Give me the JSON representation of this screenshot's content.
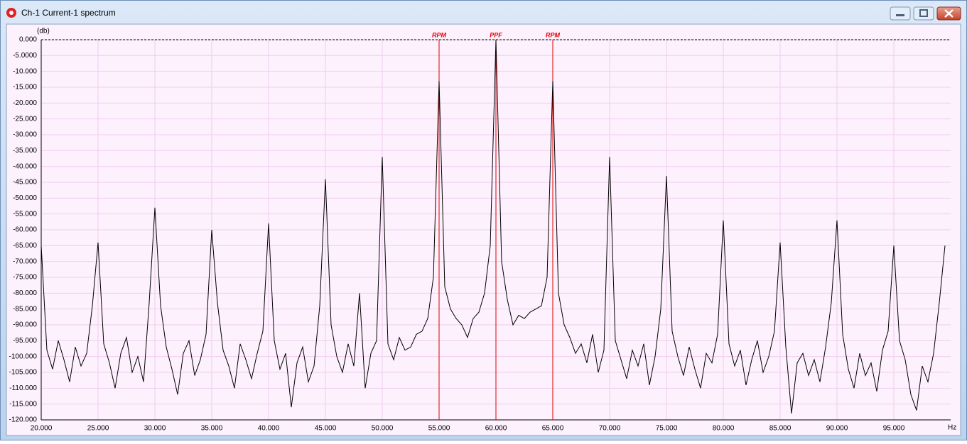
{
  "chart_data": {
    "type": "line",
    "title": "Ch-1 Current-1 spectrum",
    "y_label": "(db)",
    "x_label": "Hz",
    "color": "#000000",
    "grid": true,
    "xlim": [
      20,
      100
    ],
    "ylim": [
      -120,
      0
    ],
    "xticks": [
      {
        "value": 20,
        "label": "20.000"
      },
      {
        "value": 25,
        "label": "25.000"
      },
      {
        "value": 30,
        "label": "30.000"
      },
      {
        "value": 35,
        "label": "35.000"
      },
      {
        "value": 40,
        "label": "40.000"
      },
      {
        "value": 45,
        "label": "45.000"
      },
      {
        "value": 50,
        "label": "50.000"
      },
      {
        "value": 55,
        "label": "55.000"
      },
      {
        "value": 60,
        "label": "60.000"
      },
      {
        "value": 65,
        "label": "65.000"
      },
      {
        "value": 70,
        "label": "70.000"
      },
      {
        "value": 75,
        "label": "75.000"
      },
      {
        "value": 80,
        "label": "80.000"
      },
      {
        "value": 85,
        "label": "85.000"
      },
      {
        "value": 90,
        "label": "90.000"
      },
      {
        "value": 95,
        "label": "95.000"
      }
    ],
    "yticks": [
      {
        "value": 0,
        "label": "0.000"
      },
      {
        "value": -5,
        "label": "-5.0000"
      },
      {
        "value": -10,
        "label": "-10.000"
      },
      {
        "value": -15,
        "label": "-15.000"
      },
      {
        "value": -20,
        "label": "-20.000"
      },
      {
        "value": -25,
        "label": "-25.000"
      },
      {
        "value": -30,
        "label": "-30.000"
      },
      {
        "value": -35,
        "label": "-35.000"
      },
      {
        "value": -40,
        "label": "-40.000"
      },
      {
        "value": -45,
        "label": "-45.000"
      },
      {
        "value": -50,
        "label": "-50.000"
      },
      {
        "value": -55,
        "label": "-55.000"
      },
      {
        "value": -60,
        "label": "-60.000"
      },
      {
        "value": -65,
        "label": "-65.000"
      },
      {
        "value": -70,
        "label": "-70.000"
      },
      {
        "value": -75,
        "label": "-75.000"
      },
      {
        "value": -80,
        "label": "-80.000"
      },
      {
        "value": -85,
        "label": "-85.000"
      },
      {
        "value": -90,
        "label": "-90.000"
      },
      {
        "value": -95,
        "label": "-95.000"
      },
      {
        "value": -100,
        "label": "-100.000"
      },
      {
        "value": -105,
        "label": "-105.000"
      },
      {
        "value": -110,
        "label": "-110.000"
      },
      {
        "value": -115,
        "label": "-115.000"
      },
      {
        "value": -120,
        "label": "-120.000"
      }
    ],
    "markers": [
      {
        "x": 55,
        "label": "RPM",
        "color": "#e00000"
      },
      {
        "x": 60,
        "label": "PPF",
        "color": "#e00000"
      },
      {
        "x": 65,
        "label": "RPM",
        "color": "#e00000"
      }
    ],
    "x": [
      20,
      20.5,
      21,
      21.5,
      22,
      22.5,
      23,
      23.5,
      24,
      24.5,
      25,
      25.5,
      26,
      26.5,
      27,
      27.5,
      28,
      28.5,
      29,
      29.5,
      30,
      30.5,
      31,
      31.5,
      32,
      32.5,
      33,
      33.5,
      34,
      34.5,
      35,
      35.5,
      36,
      36.5,
      37,
      37.5,
      38,
      38.5,
      39,
      39.5,
      40,
      40.5,
      41,
      41.5,
      42,
      42.5,
      43,
      43.5,
      44,
      44.5,
      45,
      45.5,
      46,
      46.5,
      47,
      47.5,
      48,
      48.5,
      49,
      49.5,
      50,
      50.5,
      51,
      51.5,
      52,
      52.5,
      53,
      53.5,
      54,
      54.5,
      55,
      55.5,
      56,
      56.5,
      57,
      57.5,
      58,
      58.5,
      59,
      59.5,
      60,
      60.5,
      61,
      61.5,
      62,
      62.5,
      63,
      63.5,
      64,
      64.5,
      65,
      65.5,
      66,
      66.5,
      67,
      67.5,
      68,
      68.5,
      69,
      69.5,
      70,
      70.5,
      71,
      71.5,
      72,
      72.5,
      73,
      73.5,
      74,
      74.5,
      75,
      75.5,
      76,
      76.5,
      77,
      77.5,
      78,
      78.5,
      79,
      79.5,
      80,
      80.5,
      81,
      81.5,
      82,
      82.5,
      83,
      83.5,
      84,
      84.5,
      85,
      85.5,
      86,
      86.5,
      87,
      87.5,
      88,
      88.5,
      89,
      89.5,
      90,
      90.5,
      91,
      91.5,
      92,
      92.5,
      93,
      93.5,
      94,
      94.5,
      95,
      95.5,
      96,
      96.5,
      97,
      97.5,
      98,
      98.5,
      99,
      99.5
    ],
    "values": [
      -65,
      -98,
      -104,
      -95,
      -101,
      -108,
      -97,
      -103,
      -99,
      -84,
      -64,
      -96,
      -102,
      -110,
      -99,
      -94,
      -105,
      -100,
      -108,
      -83,
      -53,
      -84,
      -97,
      -104,
      -112,
      -99,
      -95,
      -106,
      -101,
      -93,
      -60,
      -83,
      -98,
      -103,
      -110,
      -96,
      -101,
      -107,
      -99,
      -92,
      -58,
      -95,
      -104,
      -99,
      -116,
      -102,
      -97,
      -108,
      -103,
      -84,
      -44,
      -90,
      -100,
      -105,
      -96,
      -103,
      -80,
      -110,
      -99,
      -95,
      -37,
      -96,
      -101,
      -94,
      -98,
      -97,
      -93,
      -92,
      -88,
      -75,
      -13,
      -78,
      -85,
      -88,
      -90,
      -94,
      -88,
      -86,
      -80,
      -65,
      0,
      -70,
      -82,
      -90,
      -87,
      -88,
      -86,
      -85,
      -84,
      -75,
      -13,
      -80,
      -90,
      -94,
      -99,
      -96,
      -102,
      -93,
      -105,
      -98,
      -37,
      -95,
      -101,
      -107,
      -98,
      -103,
      -96,
      -109,
      -100,
      -85,
      -43,
      -92,
      -100,
      -106,
      -97,
      -104,
      -110,
      -99,
      -102,
      -93,
      -57,
      -96,
      -103,
      -98,
      -109,
      -101,
      -95,
      -105,
      -100,
      -92,
      -64,
      -97,
      -118,
      -102,
      -99,
      -106,
      -101,
      -108,
      -97,
      -83,
      -57,
      -93,
      -104,
      -110,
      -99,
      -106,
      -102,
      -111,
      -98,
      -92,
      -65,
      -95,
      -101,
      -112,
      -117,
      -103,
      -108,
      -99,
      -83,
      -65
    ]
  }
}
